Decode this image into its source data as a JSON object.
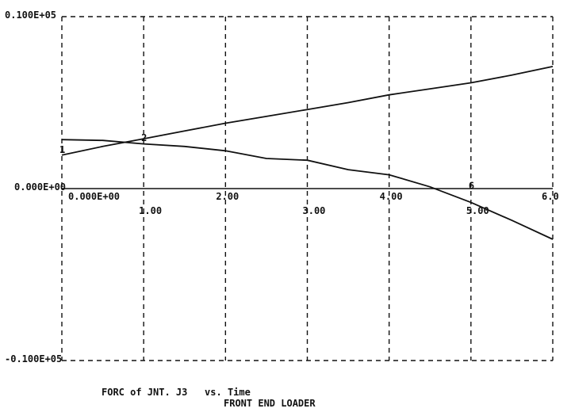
{
  "chart_data": {
    "type": "line",
    "title": "FORC of JNT. J3   vs. Time",
    "subtitle": "FRONT END LOADER",
    "xlim": [
      0,
      6
    ],
    "ylim": [
      -10000,
      10000
    ],
    "x_tick_labels": [
      "0.000E+00",
      "1.00",
      "2.00",
      "3.00",
      "4.00",
      "5.00",
      "6.0"
    ],
    "x_ticks": [
      0,
      1,
      2,
      3,
      4,
      5,
      6
    ],
    "y_tick_labels": [
      "0.100E+05",
      "0.000E+00",
      "-0.100E+05"
    ],
    "y_ticks": [
      10000,
      0,
      -10000
    ],
    "grid": true,
    "series": [
      {
        "name": "1",
        "x": [
          0,
          0.5,
          1,
          1.5,
          2,
          2.5,
          3,
          3.5,
          4,
          4.5,
          5,
          5.5,
          6
        ],
        "y": [
          1950,
          2450,
          2900,
          3350,
          3800,
          4200,
          4600,
          5000,
          5450,
          5800,
          6150,
          6600,
          7100
        ]
      },
      {
        "name": "2",
        "x": [
          0,
          0.5,
          1,
          1.5,
          2,
          2.5,
          3,
          3.5,
          4,
          4.5,
          5,
          5.5,
          6
        ],
        "y": [
          2850,
          2800,
          2600,
          2450,
          2200,
          1750,
          1650,
          1100,
          800,
          100,
          -800,
          -1850,
          -2950
        ]
      }
    ],
    "markers": [
      {
        "text": "1",
        "x": 0.0,
        "y": 2250
      },
      {
        "text": "2",
        "x": 1.0,
        "y": 2950
      },
      {
        "text": "6",
        "x": 5.0,
        "y": 150
      }
    ]
  },
  "colors": {
    "ink": "#111111",
    "background": "#ffffff"
  }
}
